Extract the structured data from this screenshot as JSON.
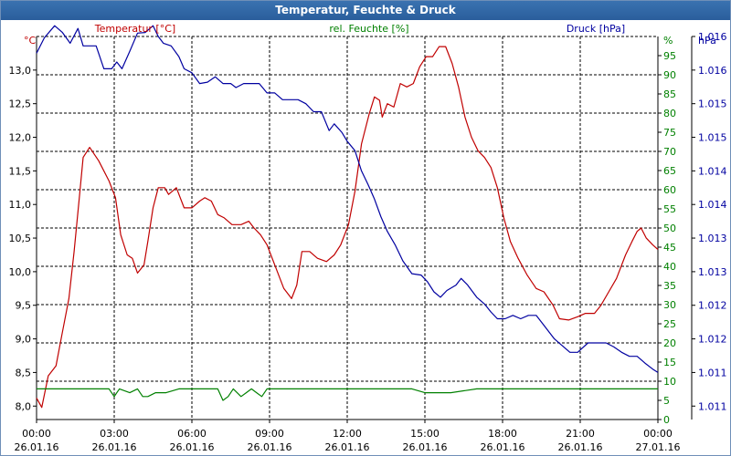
{
  "window": {
    "title": "Temperatur, Feuchte & Druck"
  },
  "colors": {
    "temperature": "#c00000",
    "humidity": "#008000",
    "pressure": "#0000a0",
    "grid": "#000000",
    "axis": "#000000"
  },
  "chart_data": {
    "type": "line",
    "title": "Temperatur, Feuchte & Druck",
    "grid": true,
    "x": {
      "label": "",
      "range_hours": [
        0,
        24
      ],
      "ticks": [
        {
          "hour": 0,
          "time": "00:00",
          "date": "26.01.16"
        },
        {
          "hour": 3,
          "time": "03:00",
          "date": "26.01.16"
        },
        {
          "hour": 6,
          "time": "06:00",
          "date": "26.01.16"
        },
        {
          "hour": 9,
          "time": "09:00",
          "date": "26.01.16"
        },
        {
          "hour": 12,
          "time": "12:00",
          "date": "26.01.16"
        },
        {
          "hour": 15,
          "time": "15:00",
          "date": "26.01.16"
        },
        {
          "hour": 18,
          "time": "18:00",
          "date": "26.01.16"
        },
        {
          "hour": 21,
          "time": "21:00",
          "date": "26.01.16"
        },
        {
          "hour": 24,
          "time": "00:00",
          "date": "27.01.16"
        }
      ]
    },
    "axes": {
      "temperature": {
        "label": "Temperatur [°C]",
        "unit": "°C",
        "range": [
          7.8,
          13.5
        ],
        "ticks": [
          {
            "v": 8.0,
            "label": "8,0"
          },
          {
            "v": 8.5,
            "label": "8,5"
          },
          {
            "v": 9.0,
            "label": "9,0"
          },
          {
            "v": 9.5,
            "label": "9,5"
          },
          {
            "v": 10.0,
            "label": "10,0"
          },
          {
            "v": 10.5,
            "label": "10,5"
          },
          {
            "v": 11.0,
            "label": "11,0"
          },
          {
            "v": 11.5,
            "label": "11,5"
          },
          {
            "v": 12.0,
            "label": "12,0"
          },
          {
            "v": 12.5,
            "label": "12,5"
          },
          {
            "v": 13.0,
            "label": "13,0"
          }
        ]
      },
      "humidity": {
        "label": "rel. Feuchte [%]",
        "unit": "%",
        "range": [
          0,
          100
        ],
        "ticks": [
          {
            "v": 0,
            "label": "0"
          },
          {
            "v": 5,
            "label": "5"
          },
          {
            "v": 10,
            "label": "10"
          },
          {
            "v": 15,
            "label": "15"
          },
          {
            "v": 20,
            "label": "20"
          },
          {
            "v": 25,
            "label": "25"
          },
          {
            "v": 30,
            "label": "30"
          },
          {
            "v": 35,
            "label": "35"
          },
          {
            "v": 40,
            "label": "40"
          },
          {
            "v": 45,
            "label": "45"
          },
          {
            "v": 50,
            "label": "50"
          },
          {
            "v": 55,
            "label": "55"
          },
          {
            "v": 60,
            "label": "60"
          },
          {
            "v": 65,
            "label": "65"
          },
          {
            "v": 70,
            "label": "70"
          },
          {
            "v": 75,
            "label": "75"
          },
          {
            "v": 80,
            "label": "80"
          },
          {
            "v": 85,
            "label": "85"
          },
          {
            "v": 90,
            "label": "90"
          },
          {
            "v": 95,
            "label": "95"
          }
        ]
      },
      "pressure": {
        "label": "Druck [hPa]",
        "unit": "hPa",
        "range": [
          1010.8,
          1016.5
        ],
        "ticks": [
          {
            "v": 1011.0,
            "label": "1.011"
          },
          {
            "v": 1011.5,
            "label": "1.011"
          },
          {
            "v": 1012.0,
            "label": "1.012"
          },
          {
            "v": 1012.5,
            "label": "1.012"
          },
          {
            "v": 1013.0,
            "label": "1.013"
          },
          {
            "v": 1013.5,
            "label": "1.013"
          },
          {
            "v": 1014.0,
            "label": "1.014"
          },
          {
            "v": 1014.5,
            "label": "1.014"
          },
          {
            "v": 1015.0,
            "label": "1.015"
          },
          {
            "v": 1015.5,
            "label": "1.015"
          },
          {
            "v": 1016.0,
            "label": "1.016"
          },
          {
            "v": 1016.5,
            "label": "1.016"
          }
        ]
      }
    },
    "series": [
      {
        "name": "Temperatur [°C]",
        "axis": "temperature",
        "color": "#c00000",
        "points": [
          [
            0,
            8.12
          ],
          [
            0.2,
            7.98
          ],
          [
            0.45,
            8.45
          ],
          [
            0.75,
            8.6
          ],
          [
            1.0,
            9.1
          ],
          [
            1.25,
            9.6
          ],
          [
            1.45,
            10.3
          ],
          [
            1.65,
            11.1
          ],
          [
            1.8,
            11.7
          ],
          [
            2.05,
            11.85
          ],
          [
            2.4,
            11.65
          ],
          [
            2.8,
            11.35
          ],
          [
            3.05,
            11.1
          ],
          [
            3.25,
            10.55
          ],
          [
            3.5,
            10.25
          ],
          [
            3.7,
            10.2
          ],
          [
            3.9,
            9.98
          ],
          [
            4.15,
            10.1
          ],
          [
            4.3,
            10.45
          ],
          [
            4.5,
            10.95
          ],
          [
            4.7,
            11.25
          ],
          [
            4.95,
            11.25
          ],
          [
            5.1,
            11.15
          ],
          [
            5.4,
            11.25
          ],
          [
            5.7,
            10.95
          ],
          [
            6.0,
            10.95
          ],
          [
            6.3,
            11.05
          ],
          [
            6.5,
            11.1
          ],
          [
            6.75,
            11.05
          ],
          [
            7.0,
            10.85
          ],
          [
            7.25,
            10.8
          ],
          [
            7.55,
            10.7
          ],
          [
            7.9,
            10.7
          ],
          [
            8.2,
            10.75
          ],
          [
            8.4,
            10.65
          ],
          [
            8.65,
            10.55
          ],
          [
            8.9,
            10.4
          ],
          [
            9.25,
            10.05
          ],
          [
            9.55,
            9.75
          ],
          [
            9.85,
            9.6
          ],
          [
            10.05,
            9.8
          ],
          [
            10.25,
            10.3
          ],
          [
            10.55,
            10.3
          ],
          [
            10.85,
            10.2
          ],
          [
            11.2,
            10.15
          ],
          [
            11.5,
            10.25
          ],
          [
            11.75,
            10.4
          ],
          [
            12.05,
            10.7
          ],
          [
            12.3,
            11.2
          ],
          [
            12.55,
            11.9
          ],
          [
            12.85,
            12.35
          ],
          [
            13.05,
            12.6
          ],
          [
            13.25,
            12.55
          ],
          [
            13.35,
            12.3
          ],
          [
            13.55,
            12.5
          ],
          [
            13.8,
            12.45
          ],
          [
            14.05,
            12.8
          ],
          [
            14.3,
            12.75
          ],
          [
            14.55,
            12.8
          ],
          [
            14.8,
            13.05
          ],
          [
            15.05,
            13.2
          ],
          [
            15.3,
            13.2
          ],
          [
            15.55,
            13.35
          ],
          [
            15.8,
            13.35
          ],
          [
            16.05,
            13.1
          ],
          [
            16.3,
            12.75
          ],
          [
            16.55,
            12.3
          ],
          [
            16.8,
            12.0
          ],
          [
            17.05,
            11.8
          ],
          [
            17.3,
            11.7
          ],
          [
            17.55,
            11.55
          ],
          [
            17.8,
            11.25
          ],
          [
            18.05,
            10.8
          ],
          [
            18.3,
            10.45
          ],
          [
            18.6,
            10.2
          ],
          [
            18.95,
            9.95
          ],
          [
            19.3,
            9.75
          ],
          [
            19.6,
            9.7
          ],
          [
            19.95,
            9.5
          ],
          [
            20.2,
            9.3
          ],
          [
            20.55,
            9.28
          ],
          [
            20.9,
            9.33
          ],
          [
            21.2,
            9.38
          ],
          [
            21.55,
            9.38
          ],
          [
            21.8,
            9.5
          ],
          [
            22.1,
            9.7
          ],
          [
            22.4,
            9.9
          ],
          [
            22.75,
            10.25
          ],
          [
            23.0,
            10.45
          ],
          [
            23.2,
            10.6
          ],
          [
            23.35,
            10.65
          ],
          [
            23.55,
            10.5
          ],
          [
            23.8,
            10.4
          ],
          [
            24.0,
            10.33
          ]
        ]
      },
      {
        "name": "rel. Feuchte [%]",
        "axis": "humidity",
        "color": "#008000",
        "points": [
          [
            0,
            8
          ],
          [
            1,
            8
          ],
          [
            2,
            8
          ],
          [
            2.8,
            8
          ],
          [
            3.0,
            6
          ],
          [
            3.2,
            8
          ],
          [
            3.6,
            7
          ],
          [
            3.9,
            8
          ],
          [
            4.1,
            6
          ],
          [
            4.3,
            6
          ],
          [
            4.6,
            7
          ],
          [
            5.0,
            7
          ],
          [
            5.5,
            8
          ],
          [
            6.0,
            8
          ],
          [
            6.5,
            8
          ],
          [
            7.0,
            8
          ],
          [
            7.2,
            5
          ],
          [
            7.4,
            6
          ],
          [
            7.6,
            8
          ],
          [
            7.9,
            6
          ],
          [
            8.1,
            7
          ],
          [
            8.3,
            8
          ],
          [
            8.5,
            7
          ],
          [
            8.7,
            6
          ],
          [
            8.9,
            8
          ],
          [
            9.2,
            8
          ],
          [
            10,
            8
          ],
          [
            11,
            8
          ],
          [
            12,
            8
          ],
          [
            13,
            8
          ],
          [
            14,
            8
          ],
          [
            14.5,
            8
          ],
          [
            15,
            7
          ],
          [
            15.5,
            7
          ],
          [
            16,
            7
          ],
          [
            17,
            8
          ],
          [
            18,
            8
          ],
          [
            19,
            8
          ],
          [
            20,
            8
          ],
          [
            21,
            8
          ],
          [
            22,
            8
          ],
          [
            23,
            8
          ],
          [
            24,
            8
          ]
        ]
      },
      {
        "name": "Druck [hPa]",
        "axis": "pressure",
        "color": "#0000a0",
        "points": [
          [
            0,
            1016.25
          ],
          [
            0.3,
            1016.48
          ],
          [
            0.7,
            1016.66
          ],
          [
            1.0,
            1016.56
          ],
          [
            1.3,
            1016.4
          ],
          [
            1.6,
            1016.62
          ],
          [
            1.8,
            1016.36
          ],
          [
            2.3,
            1016.36
          ],
          [
            2.6,
            1016.02
          ],
          [
            2.9,
            1016.02
          ],
          [
            3.1,
            1016.12
          ],
          [
            3.3,
            1016.02
          ],
          [
            3.6,
            1016.28
          ],
          [
            3.9,
            1016.55
          ],
          [
            4.2,
            1016.56
          ],
          [
            4.5,
            1016.66
          ],
          [
            4.7,
            1016.5
          ],
          [
            4.9,
            1016.4
          ],
          [
            5.2,
            1016.36
          ],
          [
            5.5,
            1016.2
          ],
          [
            5.7,
            1016.02
          ],
          [
            6.0,
            1015.96
          ],
          [
            6.3,
            1015.8
          ],
          [
            6.6,
            1015.82
          ],
          [
            6.9,
            1015.9
          ],
          [
            7.2,
            1015.8
          ],
          [
            7.5,
            1015.8
          ],
          [
            7.7,
            1015.74
          ],
          [
            8.0,
            1015.8
          ],
          [
            8.3,
            1015.8
          ],
          [
            8.6,
            1015.8
          ],
          [
            8.9,
            1015.66
          ],
          [
            9.2,
            1015.66
          ],
          [
            9.5,
            1015.56
          ],
          [
            9.8,
            1015.56
          ],
          [
            10.1,
            1015.56
          ],
          [
            10.4,
            1015.5
          ],
          [
            10.7,
            1015.38
          ],
          [
            11.0,
            1015.38
          ],
          [
            11.3,
            1015.1
          ],
          [
            11.5,
            1015.2
          ],
          [
            11.8,
            1015.07
          ],
          [
            12.0,
            1014.94
          ],
          [
            12.3,
            1014.8
          ],
          [
            12.55,
            1014.5
          ],
          [
            12.8,
            1014.3
          ],
          [
            13.05,
            1014.08
          ],
          [
            13.3,
            1013.82
          ],
          [
            13.55,
            1013.6
          ],
          [
            13.85,
            1013.4
          ],
          [
            14.15,
            1013.16
          ],
          [
            14.5,
            1012.97
          ],
          [
            14.85,
            1012.95
          ],
          [
            15.1,
            1012.85
          ],
          [
            15.35,
            1012.7
          ],
          [
            15.6,
            1012.62
          ],
          [
            15.85,
            1012.72
          ],
          [
            16.2,
            1012.8
          ],
          [
            16.4,
            1012.9
          ],
          [
            16.65,
            1012.8
          ],
          [
            17.0,
            1012.62
          ],
          [
            17.3,
            1012.52
          ],
          [
            17.55,
            1012.4
          ],
          [
            17.8,
            1012.3
          ],
          [
            18.1,
            1012.3
          ],
          [
            18.4,
            1012.35
          ],
          [
            18.7,
            1012.3
          ],
          [
            19.0,
            1012.35
          ],
          [
            19.3,
            1012.35
          ],
          [
            19.6,
            1012.2
          ],
          [
            20.0,
            1012.0
          ],
          [
            20.3,
            1011.9
          ],
          [
            20.6,
            1011.8
          ],
          [
            20.9,
            1011.8
          ],
          [
            21.3,
            1011.94
          ],
          [
            21.7,
            1011.94
          ],
          [
            22.0,
            1011.94
          ],
          [
            22.3,
            1011.88
          ],
          [
            22.6,
            1011.8
          ],
          [
            22.9,
            1011.74
          ],
          [
            23.2,
            1011.74
          ],
          [
            23.5,
            1011.64
          ],
          [
            23.8,
            1011.55
          ],
          [
            24.0,
            1011.5
          ]
        ]
      }
    ]
  }
}
